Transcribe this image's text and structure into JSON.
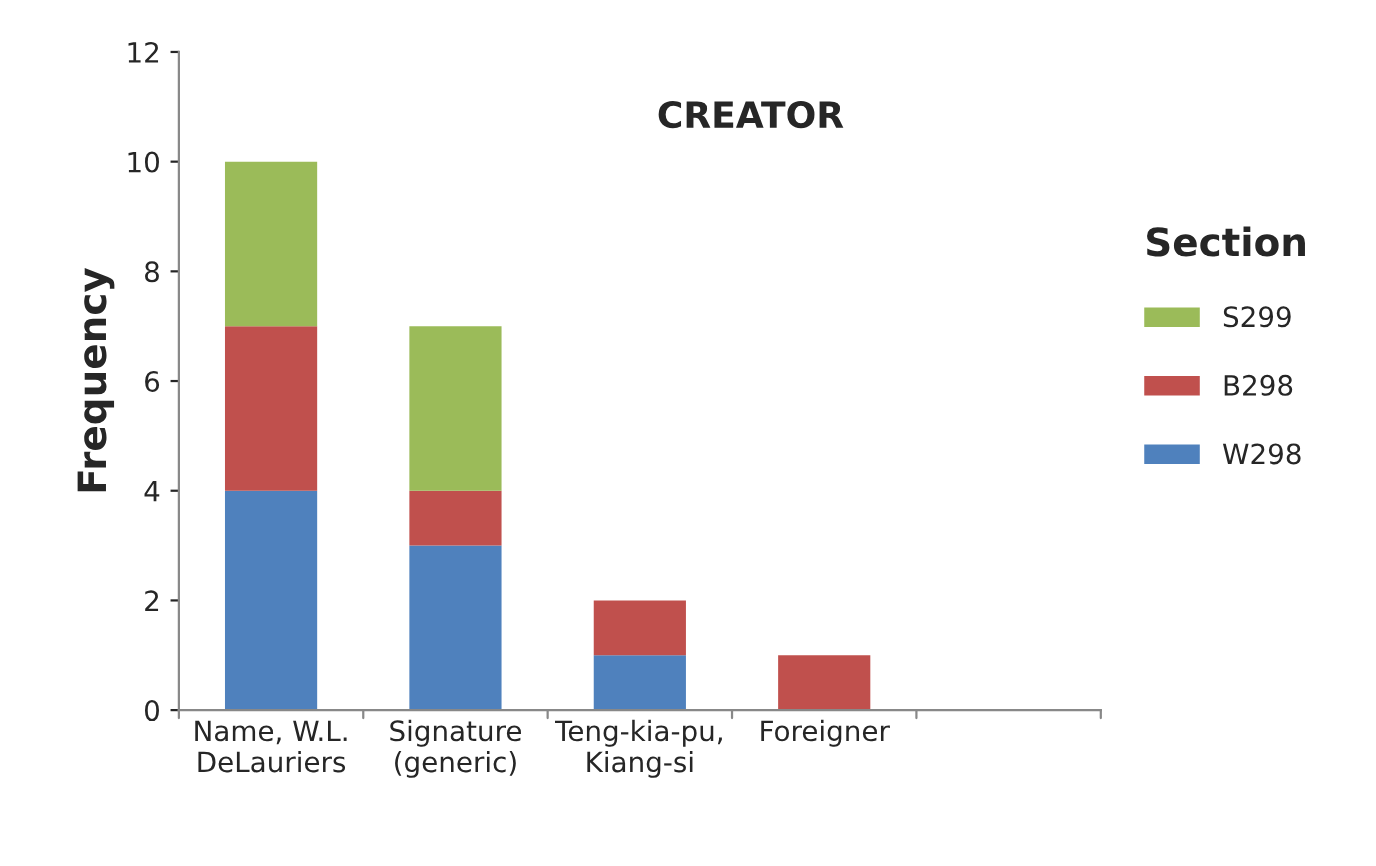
{
  "chart_data": {
    "type": "bar",
    "title": "CREATOR",
    "ylabel": "Frequency",
    "legend_title": "Section",
    "categories": [
      "Name, W.L.\nDeLauriers",
      "Signature\n(generic)",
      "Teng-kia-pu,\nKiang-si",
      "Foreigner",
      null
    ],
    "stacked": true,
    "series": [
      {
        "name": "W298",
        "color": "#4f81bd",
        "values": [
          4,
          3,
          1,
          0,
          0
        ]
      },
      {
        "name": "B298",
        "color": "#c0504d",
        "values": [
          3,
          1,
          1,
          1,
          0
        ]
      },
      {
        "name": "S299",
        "color": "#9bbb59",
        "values": [
          3,
          3,
          0,
          0,
          0
        ]
      }
    ],
    "ylim": [
      0,
      12
    ],
    "yticks": [
      0,
      2,
      4,
      6,
      8,
      10,
      12
    ],
    "grid": false,
    "legend": "right"
  }
}
